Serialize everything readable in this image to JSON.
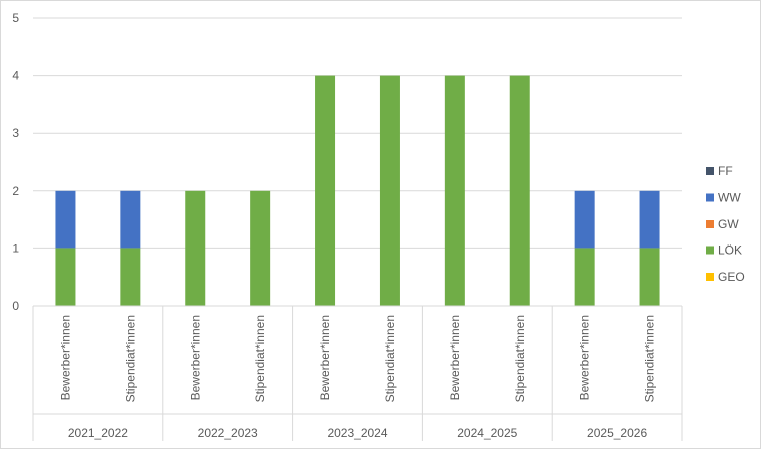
{
  "chart_data": {
    "type": "bar",
    "stacked": true,
    "ylim": [
      0,
      5
    ],
    "yticks": [
      0,
      1,
      2,
      3,
      4,
      5
    ],
    "grid": true,
    "legend_position": "right",
    "categories": [
      "Bewerber*innen",
      "Stipendiat*innen",
      "Bewerber*innen",
      "Stipendiat*innen",
      "Bewerber*innen",
      "Stipendiat*innen",
      "Bewerber*innen",
      "Stipendiat*innen",
      "Bewerber*innen",
      "Stipendiat*innen"
    ],
    "groups": [
      "2021_2022",
      "2022_2023",
      "2023_2024",
      "2024_2025",
      "2025_2026"
    ],
    "series": [
      {
        "name": "GEO",
        "color": "#ffc000",
        "values": [
          0,
          0,
          0,
          0,
          0,
          0,
          0,
          0,
          0,
          0
        ]
      },
      {
        "name": "LÖK",
        "color": "#70ad47",
        "values": [
          1,
          1,
          2,
          2,
          4,
          4,
          4,
          4,
          1,
          1
        ]
      },
      {
        "name": "GW",
        "color": "#ed7d31",
        "values": [
          0,
          0,
          0,
          0,
          0,
          0,
          0,
          0,
          0,
          0
        ]
      },
      {
        "name": "WW",
        "color": "#4472c4",
        "values": [
          1,
          1,
          0,
          0,
          0,
          0,
          0,
          0,
          1,
          1
        ]
      },
      {
        "name": "FF",
        "color": "#44546a",
        "values": [
          0,
          0,
          0,
          0,
          0,
          0,
          0,
          0,
          0,
          0
        ]
      }
    ]
  }
}
